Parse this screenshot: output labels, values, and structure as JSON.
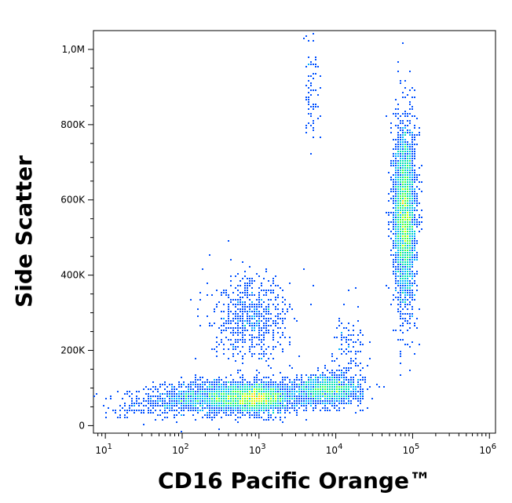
{
  "chart_data": {
    "type": "scatter",
    "subtype": "flow-cytometry density plot (pseudocolor)",
    "title": "",
    "xlabel": "CD16 Pacific Orange™",
    "ylabel": "Side Scatter",
    "x_scale": "log",
    "y_scale": "linear",
    "xlim": [
      7,
      1200000
    ],
    "ylim": [
      -20000,
      1050000
    ],
    "x_ticks": [
      {
        "value": 10,
        "base": "10",
        "exp": "1"
      },
      {
        "value": 100,
        "base": "10",
        "exp": "2"
      },
      {
        "value": 1000,
        "base": "10",
        "exp": "3"
      },
      {
        "value": 10000,
        "base": "10",
        "exp": "4"
      },
      {
        "value": 100000,
        "base": "10",
        "exp": "5"
      },
      {
        "value": 1000000,
        "base": "10",
        "exp": "6"
      }
    ],
    "y_ticks": [
      {
        "value": 0,
        "label": "0"
      },
      {
        "value": 200000,
        "label": "200K"
      },
      {
        "value": 400000,
        "label": "400K"
      },
      {
        "value": 600000,
        "label": "600K"
      },
      {
        "value": 800000,
        "label": "800K"
      },
      {
        "value": 1000000,
        "label": "1,0M"
      }
    ],
    "grid": false,
    "legend": "none",
    "density_colors": [
      "#0000c8",
      "#0050ff",
      "#00b4ff",
      "#00e0b0",
      "#40ff40",
      "#c8ff00",
      "#ffd000"
    ],
    "populations": [
      {
        "x_center": 500,
        "x_log_spread": 0.45,
        "y_center": 75000,
        "y_spread": 22000,
        "count": 2600
      },
      {
        "x_center": 1000,
        "x_log_spread": 0.18,
        "y_center": 70000,
        "y_spread": 15000,
        "count": 900
      },
      {
        "x_center": 8000,
        "x_log_spread": 0.22,
        "y_center": 95000,
        "y_spread": 20000,
        "count": 1200
      },
      {
        "x_center": 80000,
        "x_log_spread": 0.07,
        "y_center": 560000,
        "y_spread": 120000,
        "count": 3200
      },
      {
        "x_center": 800,
        "x_log_spread": 0.25,
        "y_center": 280000,
        "y_spread": 55000,
        "count": 650
      },
      {
        "x_center": 40,
        "x_log_spread": 0.3,
        "y_center": 60000,
        "y_spread": 20000,
        "count": 180
      },
      {
        "x_center": 15000,
        "x_log_spread": 0.1,
        "y_center": 200000,
        "y_spread": 50000,
        "count": 120
      },
      {
        "x_center": 5000,
        "x_log_spread": 0.05,
        "y_center": 900000,
        "y_spread": 90000,
        "count": 80
      }
    ]
  }
}
